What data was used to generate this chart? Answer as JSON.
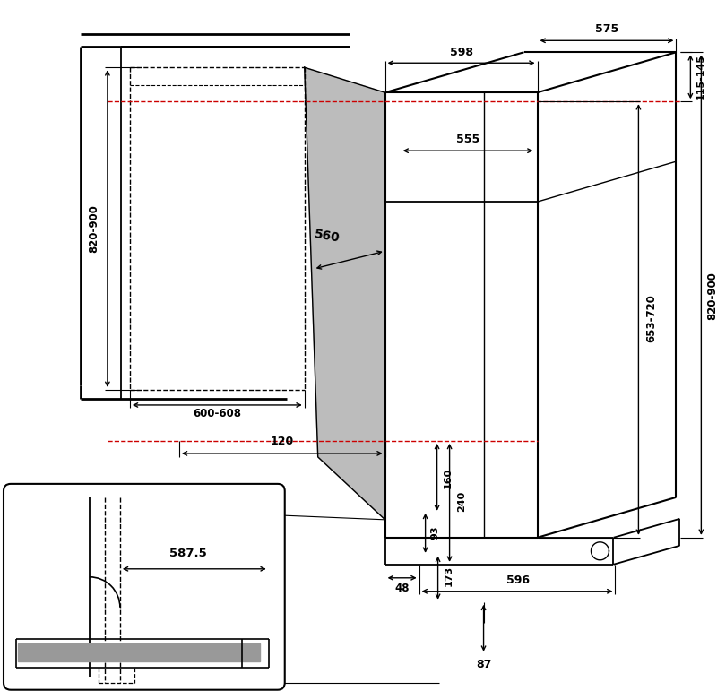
{
  "bg_color": "#ffffff",
  "lc": "#000000",
  "rc": "#cc0000",
  "gray_panel": "#999999",
  "figsize": [
    8.0,
    7.71
  ],
  "dpi": 100
}
